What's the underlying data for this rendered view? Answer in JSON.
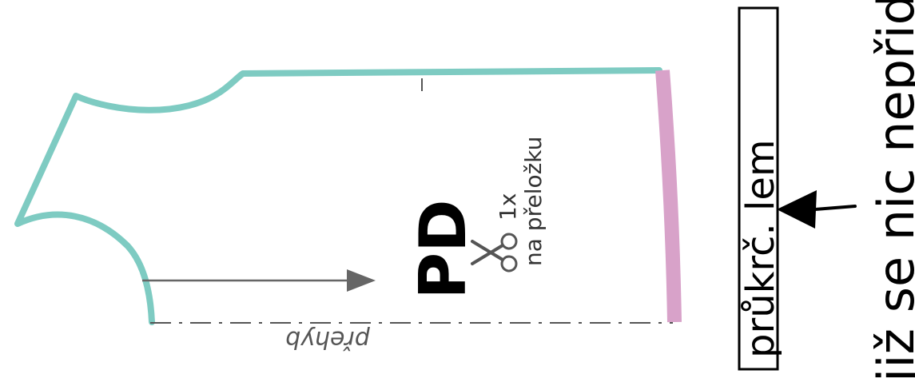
{
  "piece": {
    "code": "PD",
    "cut_count": "1x",
    "cut_note": "na přeložku",
    "fold_label": "přehyb"
  },
  "side_label": {
    "text": "průkrč. lem"
  },
  "note": {
    "text": "již se nic nepřidá"
  },
  "icons": {
    "scissors": "scissors-icon",
    "grainline": "grainline-arrow",
    "pointer": "pointer-arrow"
  },
  "colors": {
    "outline": "#7ecbc2",
    "hem": "#d8a2c9",
    "ink": "#000000",
    "grainline": "#666666",
    "fold_line": "#555555",
    "text_gray": "#333333"
  }
}
